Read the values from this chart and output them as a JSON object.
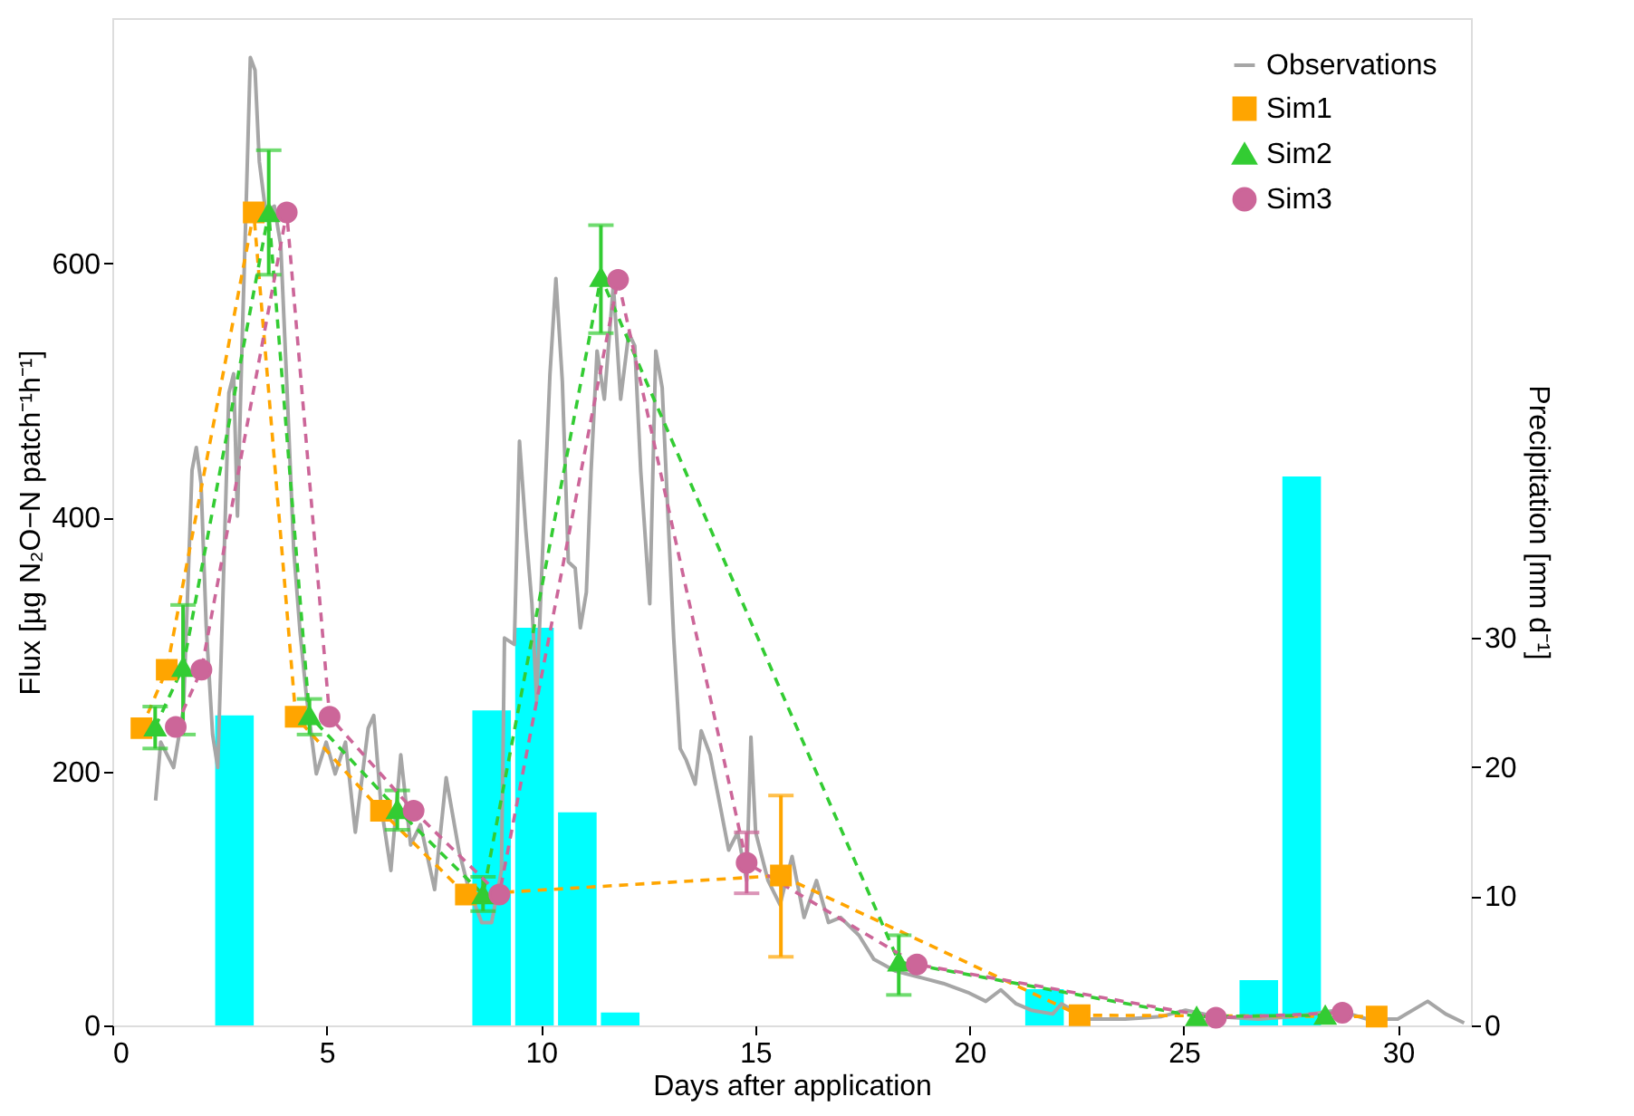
{
  "chart_data": {
    "type": "line",
    "xlabel": "Days after application",
    "ylabel": "Flux [µg N₂O−N patch⁻¹h⁻¹]",
    "y2label": "Precipitation [mm d⁻¹]",
    "xlim": [
      0,
      31.7
    ],
    "xticks": [
      0,
      5,
      10,
      15,
      20,
      25,
      30
    ],
    "ylim": [
      0,
      793
    ],
    "yticks": [
      0,
      200,
      400,
      600
    ],
    "y2lim": [
      0,
      78
    ],
    "y2ticks": [
      0,
      10,
      20,
      30
    ],
    "grid": false,
    "legend": "top right",
    "series": [
      {
        "type": "bar",
        "axis": "y2",
        "color": "#00ffff",
        "x": [
          2.85,
          8.85,
          9.85,
          10.85,
          11.85,
          21.75,
          26.75,
          27.75
        ],
        "values": [
          24.0,
          24.4,
          30.8,
          16.5,
          1.0,
          2.8,
          3.5,
          42.5
        ]
      },
      {
        "name": "Observations",
        "color": "#a6a6a6",
        "marker": "none",
        "line_style": "solid",
        "x": [
          1.01,
          1.13,
          1.43,
          1.66,
          1.86,
          1.96,
          2.07,
          2.19,
          2.34,
          2.46,
          2.57,
          2.72,
          2.83,
          2.92,
          3.02,
          3.13,
          3.22,
          3.33,
          3.43,
          3.58,
          3.78,
          3.93,
          4.08,
          4.23,
          4.38,
          4.53,
          4.76,
          4.99,
          5.2,
          5.44,
          5.67,
          5.97,
          6.1,
          6.27,
          6.5,
          6.73,
          6.96,
          7.19,
          7.52,
          7.79,
          8.09,
          8.32,
          8.62,
          8.85,
          9.08,
          9.15,
          9.38,
          9.5,
          9.65,
          9.79,
          9.9,
          10.0,
          10.21,
          10.35,
          10.5,
          10.64,
          10.8,
          10.92,
          11.06,
          11.17,
          11.31,
          11.48,
          11.69,
          11.86,
          12.05,
          12.19,
          12.33,
          12.54,
          12.68,
          12.83,
          12.97,
          13.1,
          13.25,
          13.39,
          13.6,
          13.74,
          13.95,
          14.17,
          14.38,
          14.59,
          14.8,
          14.9,
          15.01,
          15.3,
          15.58,
          15.86,
          16.14,
          16.43,
          16.71,
          16.99,
          17.42,
          17.77,
          18.26,
          18.83,
          19.39,
          19.96,
          20.38,
          20.73,
          21.09,
          21.44,
          21.94,
          22.15,
          22.78,
          23.63,
          24.48,
          25.04,
          25.75,
          26.74,
          27.58,
          28.57,
          29.28,
          29.99,
          30.69,
          31.11,
          31.54
        ],
        "values": [
          177,
          223,
          203,
          249,
          437,
          455,
          427,
          315,
          229,
          203,
          325,
          498,
          513,
          401,
          528,
          655,
          762,
          752,
          680,
          640,
          645,
          614,
          498,
          376,
          310,
          259,
          198,
          223,
          198,
          223,
          152,
          234,
          244,
          173,
          122,
          213,
          142,
          158,
          107,
          195,
          137,
          107,
          81,
          81,
          122,
          305,
          300,
          460,
          389,
          332,
          256,
          341,
          512,
          588,
          507,
          365,
          360,
          313,
          341,
          436,
          531,
          493,
          583,
          493,
          545,
          535,
          436,
          332,
          531,
          502,
          398,
          304,
          218,
          209,
          190,
          232,
          213,
          175,
          138,
          152,
          114,
          227,
          152,
          114,
          95,
          133,
          85,
          114,
          81,
          85,
          71,
          52,
          43,
          38,
          33,
          26,
          19,
          28,
          17,
          12,
          9,
          17,
          5,
          5,
          7,
          12,
          7,
          5,
          7,
          12,
          5,
          5,
          19,
          9,
          2
        ]
      },
      {
        "name": "Sim1",
        "color": "#ffa500",
        "marker": "square",
        "line_style": "dashed",
        "x": [
          0.68,
          1.27,
          3.3,
          4.28,
          6.27,
          8.25,
          15.6,
          22.57,
          29.5
        ],
        "values": [
          234,
          280,
          640,
          243,
          169,
          103,
          118,
          8,
          7
        ],
        "errors": [
          null,
          null,
          null,
          null,
          null,
          null,
          [
            54,
            181
          ],
          null,
          null
        ]
      },
      {
        "name": "Sim2",
        "color": "#33cc33",
        "marker": "triangle",
        "line_style": "dashed",
        "x": [
          1.0,
          1.65,
          3.65,
          4.6,
          6.65,
          8.65,
          11.4,
          18.35,
          25.3,
          28.3
        ],
        "values": [
          235,
          282,
          640,
          244,
          170,
          103,
          589,
          50,
          7,
          8
        ],
        "errors": [
          [
            218,
            251
          ],
          [
            229,
            331
          ],
          [
            591,
            689
          ],
          [
            229,
            257
          ],
          [
            154,
            185
          ],
          [
            90,
            117
          ],
          [
            545,
            630
          ],
          [
            24,
            71
          ],
          null,
          null
        ]
      },
      {
        "name": "Sim3",
        "color": "#cc6699",
        "marker": "circle",
        "line_style": "dashed",
        "x": [
          1.48,
          2.08,
          4.07,
          5.07,
          7.03,
          9.03,
          11.8,
          14.8,
          18.77,
          25.75,
          28.7
        ],
        "values": [
          235,
          280,
          640,
          243,
          169,
          103,
          587,
          128,
          48,
          6,
          10
        ],
        "errors": [
          null,
          null,
          null,
          null,
          null,
          null,
          null,
          [
            104,
            152
          ],
          null,
          null,
          null
        ]
      }
    ]
  }
}
